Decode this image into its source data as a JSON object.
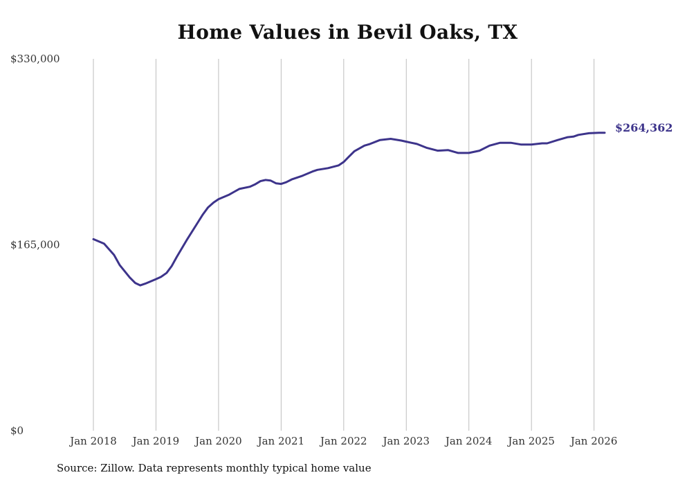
{
  "chart_data": {
    "type": "line",
    "title": "Home Values in Bevil Oaks, TX",
    "xlabel": "",
    "ylabel": "",
    "ylim": [
      0,
      330000
    ],
    "y_ticks": [
      0,
      165000,
      330000
    ],
    "y_tick_labels": [
      "$0",
      "$165,000",
      "$330,000"
    ],
    "x_tick_labels": [
      "Jan 2018",
      "Jan 2019",
      "Jan 2020",
      "Jan 2021",
      "Jan 2022",
      "Jan 2023",
      "Jan 2024",
      "Jan 2025",
      "Jan 2026"
    ],
    "x_range": [
      2018.0,
      2026.17
    ],
    "grid": "vertical",
    "line_color": "#3d348b",
    "series": [
      {
        "name": "Typical home value",
        "x": [
          2018.0,
          2018.17,
          2018.33,
          2018.42,
          2018.58,
          2018.67,
          2018.75,
          2018.83,
          2019.0,
          2019.08,
          2019.17,
          2019.25,
          2019.33,
          2019.5,
          2019.67,
          2019.75,
          2019.83,
          2019.92,
          2020.0,
          2020.17,
          2020.25,
          2020.33,
          2020.5,
          2020.58,
          2020.67,
          2020.75,
          2020.83,
          2020.92,
          2021.0,
          2021.08,
          2021.17,
          2021.33,
          2021.5,
          2021.58,
          2021.75,
          2021.92,
          2022.0,
          2022.08,
          2022.17,
          2022.33,
          2022.42,
          2022.58,
          2022.75,
          2022.92,
          2023.0,
          2023.08,
          2023.17,
          2023.33,
          2023.5,
          2023.67,
          2023.83,
          2024.0,
          2024.17,
          2024.33,
          2024.5,
          2024.67,
          2024.83,
          2025.0,
          2025.17,
          2025.25,
          2025.42,
          2025.58,
          2025.67,
          2025.75,
          2025.92,
          2026.08,
          2026.17
        ],
        "values": [
          170000,
          166000,
          156000,
          147000,
          136000,
          131000,
          129000,
          130500,
          134500,
          136500,
          140000,
          146000,
          154000,
          170000,
          185000,
          192000,
          198000,
          202500,
          205500,
          209500,
          212000,
          214500,
          216500,
          218500,
          221500,
          222500,
          222000,
          219500,
          219000,
          220500,
          223000,
          226000,
          230000,
          231500,
          233000,
          235500,
          238500,
          243000,
          248000,
          253000,
          254500,
          258000,
          259000,
          257500,
          256500,
          255500,
          254500,
          251000,
          248500,
          249000,
          246500,
          246500,
          248500,
          253000,
          255500,
          255500,
          254000,
          254000,
          255000,
          255000,
          258000,
          260500,
          261000,
          262500,
          264000,
          264362,
          264362
        ]
      }
    ],
    "end_label": "$264,362",
    "source": "Source: Zillow. Data represents monthly typical home value"
  }
}
